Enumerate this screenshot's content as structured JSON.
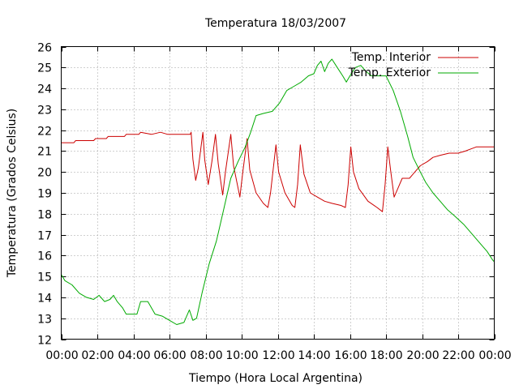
{
  "chart_data": {
    "type": "line",
    "title": "Temperatura 18/03/2007",
    "xlabel": "Tiempo (Hora Local Argentina)",
    "ylabel": "Temperatura (Grados Celsius)",
    "x_unit": "hours",
    "xlim": [
      0,
      24
    ],
    "ylim": [
      12,
      26
    ],
    "x_ticks": [
      0,
      2,
      4,
      6,
      8,
      10,
      12,
      14,
      16,
      18,
      20,
      22,
      24
    ],
    "x_tick_labels": [
      "00:00",
      "02:00",
      "04:00",
      "06:00",
      "08:00",
      "10:00",
      "12:00",
      "14:00",
      "16:00",
      "18:00",
      "20:00",
      "22:00",
      "00:00"
    ],
    "y_ticks": [
      12,
      13,
      14,
      15,
      16,
      17,
      18,
      19,
      20,
      21,
      22,
      23,
      24,
      25,
      26
    ],
    "y_tick_labels": [
      "12",
      "13",
      "14",
      "15",
      "16",
      "17",
      "18",
      "19",
      "20",
      "21",
      "22",
      "23",
      "24",
      "25",
      "26"
    ],
    "grid": true,
    "legend_position": "top-right",
    "series": [
      {
        "name": "Temp. Interior",
        "color": "#cc0000",
        "points": [
          [
            0.0,
            21.4
          ],
          [
            0.7,
            21.4
          ],
          [
            0.8,
            21.5
          ],
          [
            1.8,
            21.5
          ],
          [
            1.9,
            21.6
          ],
          [
            2.5,
            21.6
          ],
          [
            2.6,
            21.7
          ],
          [
            3.5,
            21.7
          ],
          [
            3.6,
            21.8
          ],
          [
            4.3,
            21.8
          ],
          [
            4.4,
            21.9
          ],
          [
            5.0,
            21.8
          ],
          [
            5.5,
            21.9
          ],
          [
            5.9,
            21.8
          ],
          [
            6.6,
            21.8
          ],
          [
            7.15,
            21.8
          ],
          [
            7.2,
            21.9
          ],
          [
            7.3,
            20.6
          ],
          [
            7.45,
            19.6
          ],
          [
            7.6,
            20.2
          ],
          [
            7.85,
            21.9
          ],
          [
            7.95,
            20.6
          ],
          [
            8.15,
            19.4
          ],
          [
            8.35,
            20.5
          ],
          [
            8.55,
            21.8
          ],
          [
            8.7,
            20.4
          ],
          [
            8.95,
            18.9
          ],
          [
            9.1,
            20.0
          ],
          [
            9.4,
            21.8
          ],
          [
            9.55,
            20.3
          ],
          [
            9.9,
            18.8
          ],
          [
            10.05,
            19.9
          ],
          [
            10.3,
            21.6
          ],
          [
            10.45,
            20.1
          ],
          [
            10.8,
            19.0
          ],
          [
            11.2,
            18.5
          ],
          [
            11.45,
            18.3
          ],
          [
            11.6,
            19.0
          ],
          [
            11.9,
            21.3
          ],
          [
            12.05,
            20.0
          ],
          [
            12.4,
            19.0
          ],
          [
            12.8,
            18.4
          ],
          [
            12.95,
            18.3
          ],
          [
            13.1,
            19.4
          ],
          [
            13.25,
            21.3
          ],
          [
            13.45,
            19.9
          ],
          [
            13.8,
            19.0
          ],
          [
            14.2,
            18.8
          ],
          [
            14.6,
            18.6
          ],
          [
            15.0,
            18.5
          ],
          [
            15.5,
            18.4
          ],
          [
            15.75,
            18.3
          ],
          [
            15.9,
            19.4
          ],
          [
            16.05,
            21.2
          ],
          [
            16.2,
            20.0
          ],
          [
            16.5,
            19.2
          ],
          [
            17.0,
            18.6
          ],
          [
            17.5,
            18.3
          ],
          [
            17.8,
            18.1
          ],
          [
            17.95,
            19.4
          ],
          [
            18.1,
            21.2
          ],
          [
            18.25,
            20.1
          ],
          [
            18.45,
            18.8
          ],
          [
            18.65,
            19.2
          ],
          [
            18.9,
            19.7
          ],
          [
            19.3,
            19.7
          ],
          [
            19.6,
            20.0
          ],
          [
            19.9,
            20.3
          ],
          [
            20.3,
            20.5
          ],
          [
            20.6,
            20.7
          ],
          [
            21.0,
            20.8
          ],
          [
            21.5,
            20.9
          ],
          [
            22.0,
            20.9
          ],
          [
            22.4,
            21.0
          ],
          [
            22.7,
            21.1
          ],
          [
            23.0,
            21.2
          ],
          [
            24.0,
            21.2
          ]
        ]
      },
      {
        "name": "Temp. Exterior",
        "color": "#00aa00",
        "points": [
          [
            0.0,
            15.1
          ],
          [
            0.2,
            14.8
          ],
          [
            0.6,
            14.6
          ],
          [
            1.0,
            14.2
          ],
          [
            1.4,
            14.0
          ],
          [
            1.8,
            13.9
          ],
          [
            2.1,
            14.1
          ],
          [
            2.4,
            13.8
          ],
          [
            2.7,
            13.9
          ],
          [
            2.9,
            14.1
          ],
          [
            3.1,
            13.8
          ],
          [
            3.4,
            13.5
          ],
          [
            3.6,
            13.2
          ],
          [
            4.0,
            13.2
          ],
          [
            4.2,
            13.2
          ],
          [
            4.4,
            13.8
          ],
          [
            4.8,
            13.8
          ],
          [
            5.2,
            13.2
          ],
          [
            5.6,
            13.1
          ],
          [
            6.0,
            12.9
          ],
          [
            6.4,
            12.7
          ],
          [
            6.8,
            12.8
          ],
          [
            7.1,
            13.4
          ],
          [
            7.3,
            12.9
          ],
          [
            7.5,
            13.0
          ],
          [
            7.8,
            14.2
          ],
          [
            8.2,
            15.6
          ],
          [
            8.6,
            16.7
          ],
          [
            9.0,
            18.2
          ],
          [
            9.4,
            19.7
          ],
          [
            9.8,
            20.5
          ],
          [
            10.2,
            21.2
          ],
          [
            10.5,
            21.9
          ],
          [
            10.8,
            22.7
          ],
          [
            11.2,
            22.8
          ],
          [
            11.7,
            22.9
          ],
          [
            12.1,
            23.3
          ],
          [
            12.5,
            23.9
          ],
          [
            12.9,
            24.1
          ],
          [
            13.3,
            24.3
          ],
          [
            13.7,
            24.6
          ],
          [
            14.0,
            24.7
          ],
          [
            14.2,
            25.1
          ],
          [
            14.4,
            25.3
          ],
          [
            14.6,
            24.8
          ],
          [
            14.8,
            25.2
          ],
          [
            15.0,
            25.4
          ],
          [
            15.3,
            25.0
          ],
          [
            15.6,
            24.6
          ],
          [
            15.8,
            24.3
          ],
          [
            16.0,
            24.6
          ],
          [
            16.3,
            25.0
          ],
          [
            16.6,
            25.1
          ],
          [
            16.9,
            24.8
          ],
          [
            17.2,
            24.6
          ],
          [
            17.6,
            24.6
          ],
          [
            18.0,
            24.6
          ],
          [
            18.4,
            23.9
          ],
          [
            18.8,
            22.9
          ],
          [
            19.2,
            21.7
          ],
          [
            19.5,
            20.7
          ],
          [
            19.9,
            20.0
          ],
          [
            20.2,
            19.5
          ],
          [
            20.6,
            19.0
          ],
          [
            21.0,
            18.6
          ],
          [
            21.4,
            18.2
          ],
          [
            21.8,
            17.9
          ],
          [
            22.3,
            17.5
          ],
          [
            22.8,
            17.0
          ],
          [
            23.2,
            16.6
          ],
          [
            23.6,
            16.2
          ],
          [
            23.9,
            15.8
          ],
          [
            24.0,
            15.7
          ]
        ]
      }
    ]
  }
}
